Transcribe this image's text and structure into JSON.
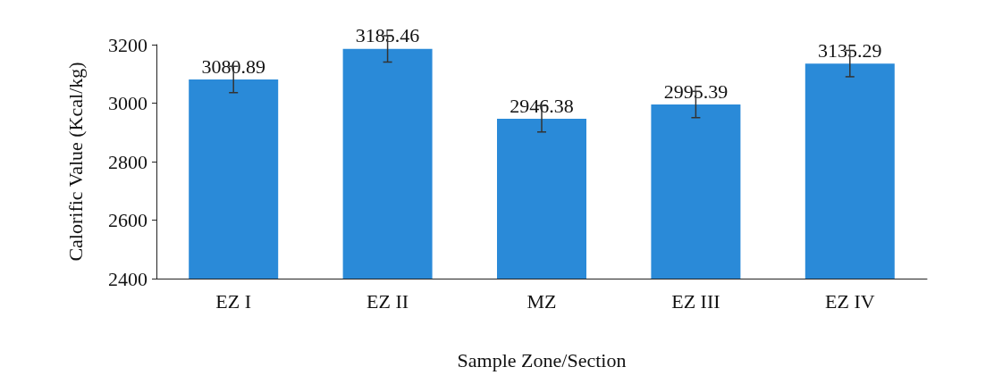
{
  "chart_data": {
    "type": "bar",
    "xlabel": "Sample Zone/Section",
    "ylabel": "Calorific Value (Kcal/kg)",
    "categories": [
      "EZ I",
      "EZ II",
      "MZ",
      "EZ III",
      "EZ IV"
    ],
    "values": [
      3080.89,
      3185.46,
      2946.38,
      2995.39,
      3135.29
    ],
    "errors": [
      45,
      45,
      45,
      45,
      45
    ],
    "color": "#2a8ad8",
    "ylim": [
      2400,
      3200
    ],
    "yticks": [
      2400,
      2600,
      2800,
      3000,
      3200
    ],
    "grid": false,
    "data_labels": true
  }
}
